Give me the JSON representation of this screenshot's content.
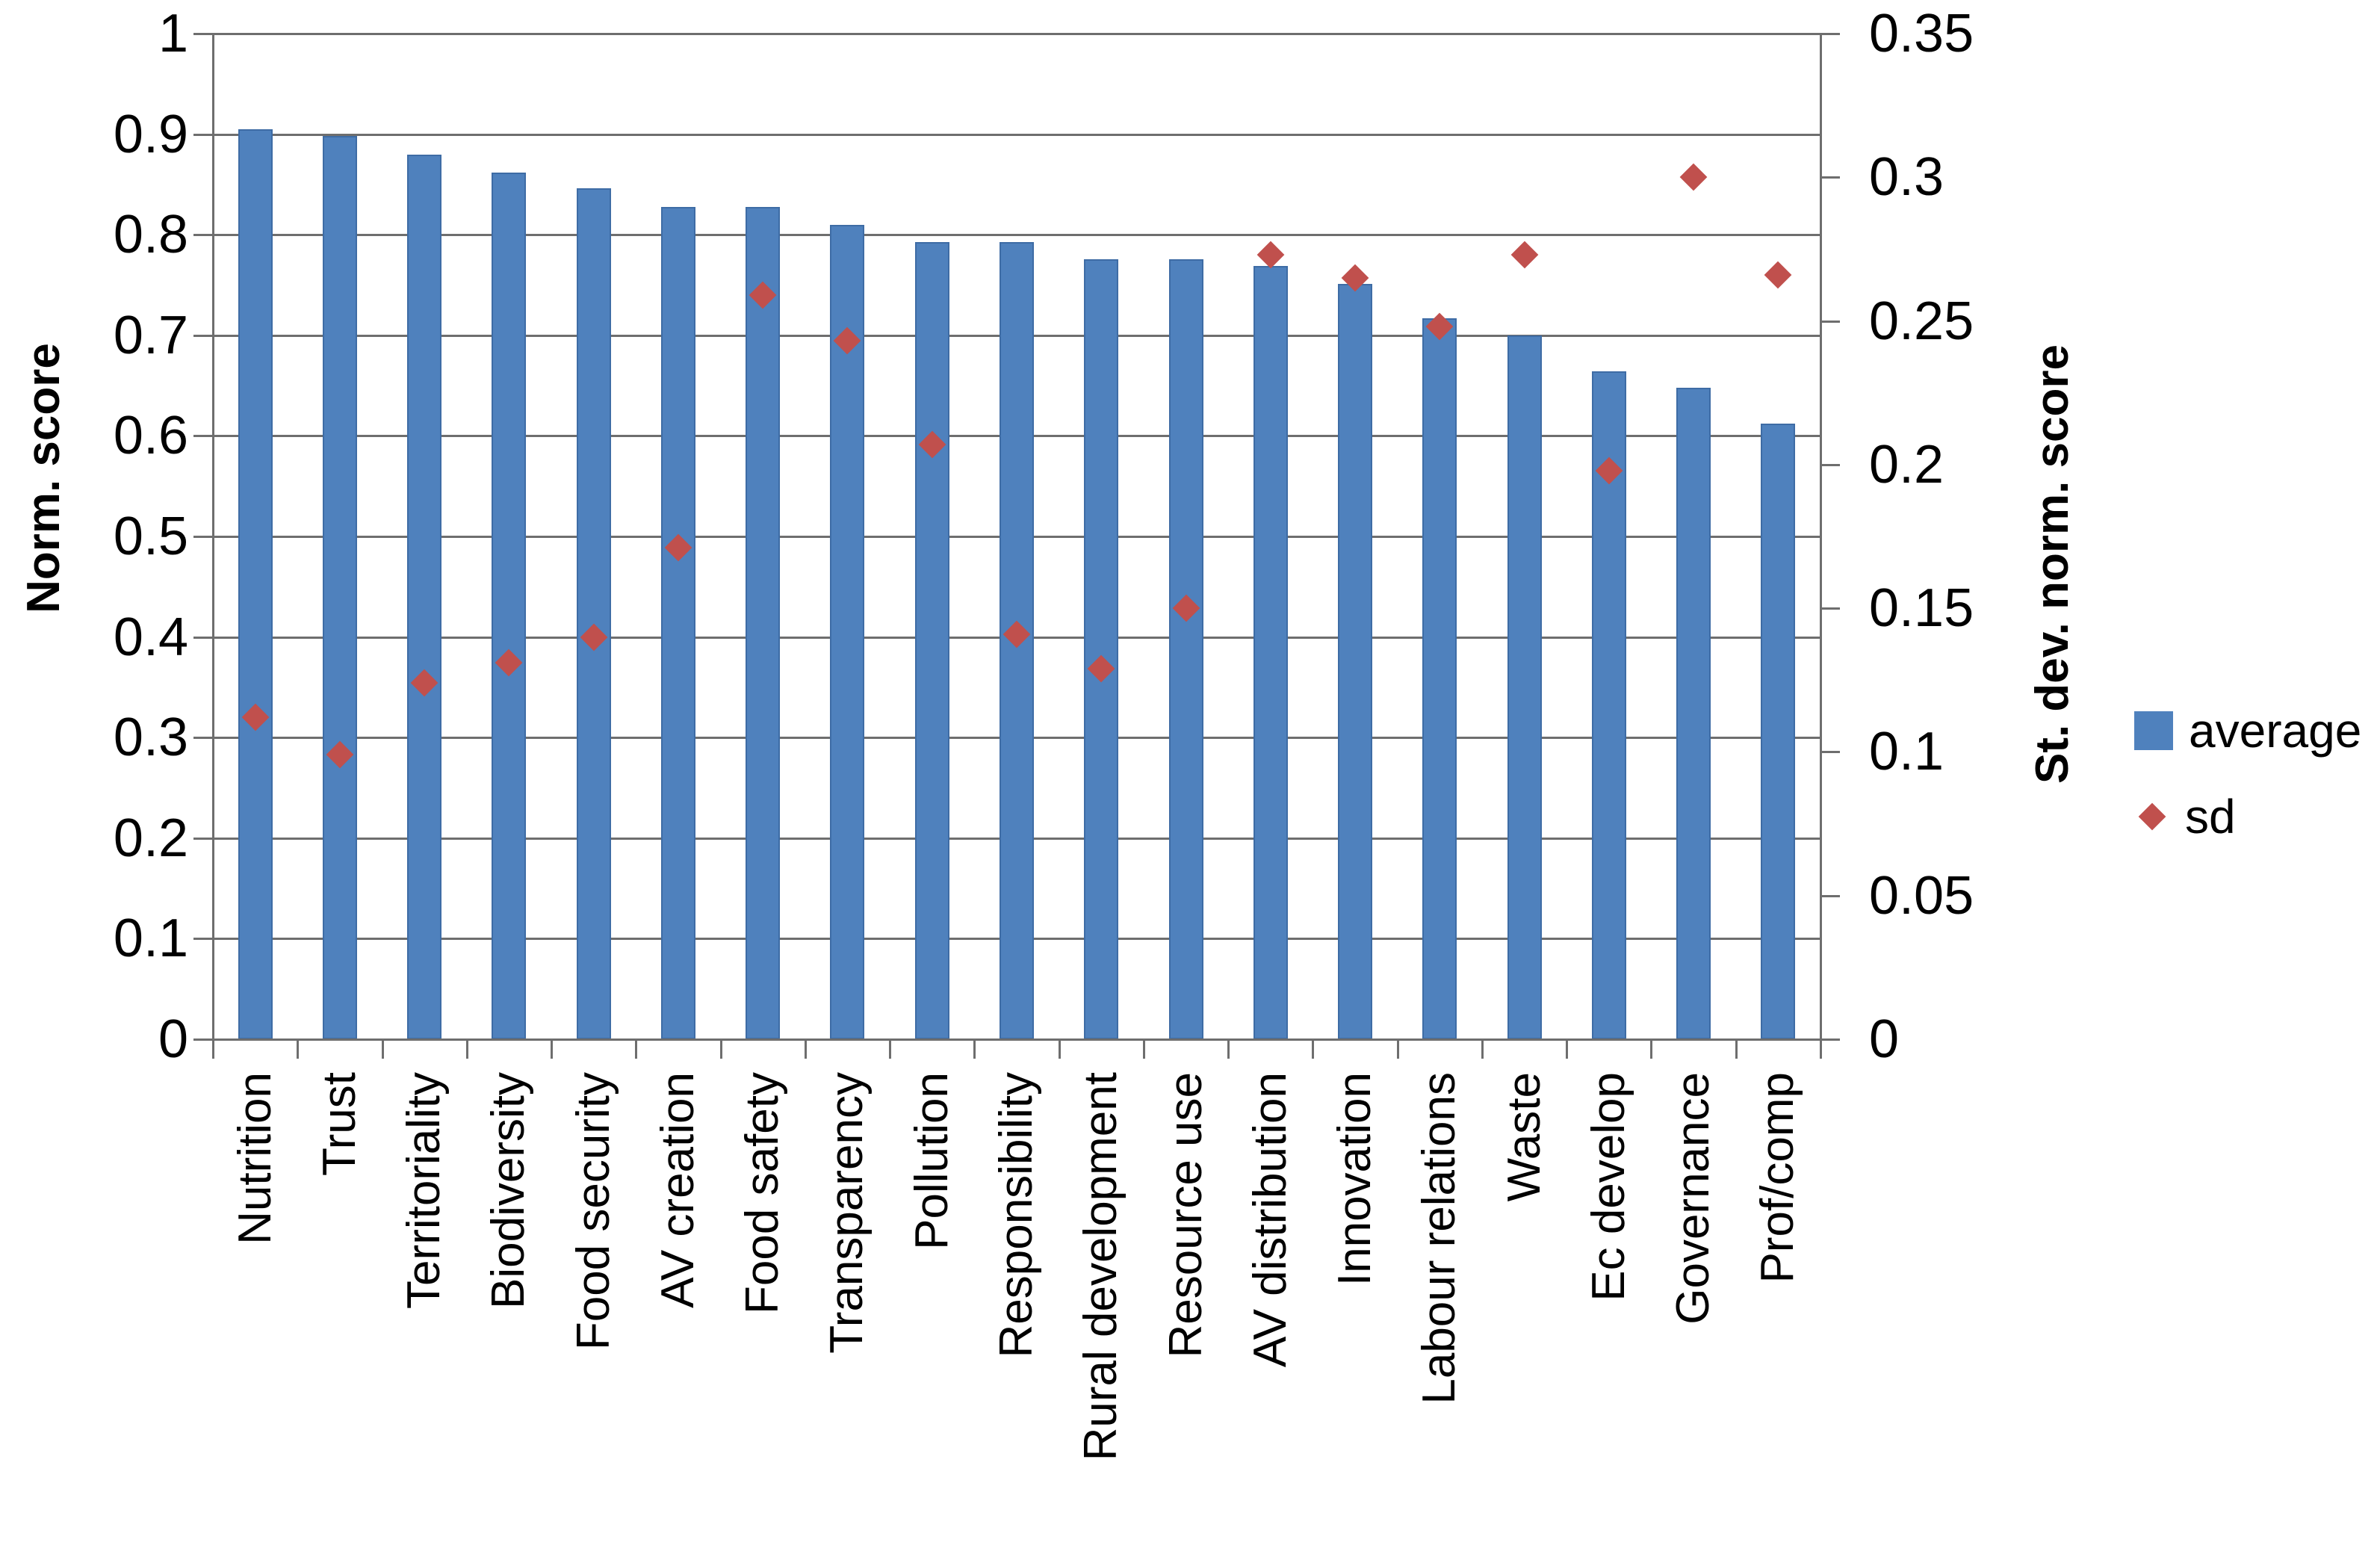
{
  "chart_data": {
    "type": "bar",
    "subtype": "bar-with-scatter-overlay-dual-axis",
    "categories": [
      "Nutrition",
      "Trust",
      "Territoriality",
      "Biodiversity",
      "Food security",
      "AV creation",
      "Food safety",
      "Transparency",
      "Pollution",
      "Responsibility",
      "Rural development",
      "Resource use",
      "AV distribution",
      "Innovation",
      "Labour relations",
      "Waste",
      "Ec develop",
      "Governance",
      "Prof/comp"
    ],
    "series": [
      {
        "name": "average",
        "type": "bar",
        "axis": "left",
        "color": "#4F81BD",
        "values": [
          0.905,
          0.898,
          0.88,
          0.862,
          0.846,
          0.828,
          0.828,
          0.81,
          0.793,
          0.793,
          0.776,
          0.776,
          0.769,
          0.751,
          0.717,
          0.7,
          0.664,
          0.648,
          0.612
        ]
      },
      {
        "name": "sd",
        "type": "scatter",
        "marker": "diamond",
        "axis": "right",
        "color": "#C0504D",
        "values": [
          0.112,
          0.099,
          0.124,
          0.131,
          0.14,
          0.171,
          0.259,
          0.243,
          0.207,
          0.141,
          0.129,
          0.15,
          0.273,
          0.265,
          0.248,
          0.273,
          0.198,
          0.3,
          0.266
        ]
      }
    ],
    "left_axis": {
      "label": "Norm. score",
      "min": 0,
      "max": 1,
      "tick_labels": [
        "0",
        "0.1",
        "0.2",
        "0.3",
        "0.4",
        "0.5",
        "0.6",
        "0.7",
        "0.8",
        "0.9",
        "1"
      ]
    },
    "right_axis": {
      "label": "St. dev. norm. score",
      "min": 0,
      "max": 0.35,
      "tick_labels": [
        "0",
        "0.05",
        "0.1",
        "0.15",
        "0.2",
        "0.25",
        "0.3",
        "0.35"
      ]
    },
    "grid": true,
    "legend_position": "right",
    "colors": {
      "bar_fill": "#4F81BD",
      "bar_edge": "#3E6CA5",
      "marker_fill": "#C0504D",
      "grid_line": "#6e6e6e",
      "text": "#000000",
      "background": "#ffffff"
    }
  },
  "legend": {
    "average_label": "average",
    "sd_label": "sd"
  }
}
